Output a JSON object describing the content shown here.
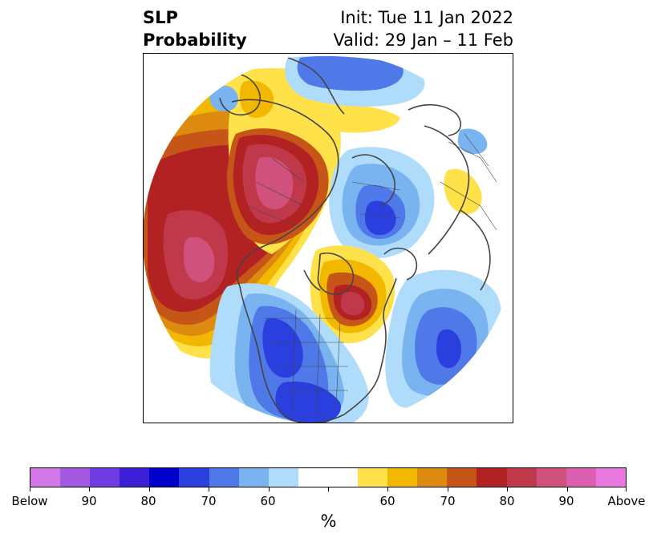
{
  "title": {
    "left_line1": "SLP",
    "left_line2": "Probability",
    "right_line1": "Init: Tue 11 Jan 2022",
    "right_line2": "Valid: 29 Jan – 11 Feb"
  },
  "map": {
    "projection": "north-polar-stereographic",
    "colors": {
      "below_90_plus": "#9b59d6",
      "below_80": "#3a1fd6",
      "below_70": "#2b3fde",
      "below_60": "#7ab4f0",
      "below_50": "#b0dcfb",
      "neutral": "#ffffff",
      "above_50": "#ffe14a",
      "above_60": "#f2b800",
      "above_70": "#dc8a10",
      "above_75": "#c65618",
      "above_80": "#b22222",
      "above_85": "#c0394b",
      "above_90": "#d0527c"
    }
  },
  "colorbar": {
    "unit_label": "%",
    "colors": [
      "#d277e8",
      "#a35ae0",
      "#6e3ce0",
      "#3a1fd6",
      "#0000cc",
      "#2b3fde",
      "#4f79e8",
      "#7ab4f0",
      "#b0dcfb",
      "#ffffff",
      "#ffffff",
      "#ffe14a",
      "#f2b800",
      "#dc8a10",
      "#c65618",
      "#b22222",
      "#c0394b",
      "#d0527c",
      "#dc60b0",
      "#e879e0"
    ],
    "tick_labels": [
      "Below",
      "90",
      "80",
      "70",
      "60",
      "",
      "60",
      "70",
      "80",
      "90",
      "Above"
    ]
  }
}
